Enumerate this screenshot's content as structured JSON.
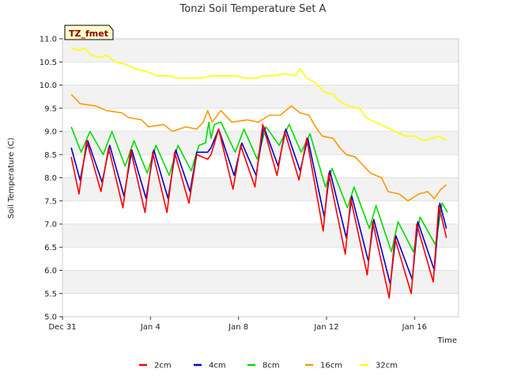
{
  "chart_data": {
    "type": "line",
    "title": "Tonzi Soil Temperature Set A",
    "xlabel": "Time",
    "ylabel": "Soil Temperature (C)",
    "badge": "TZ_fmet",
    "grid": true,
    "legend_position": "bottom",
    "xlim": [
      0,
      18
    ],
    "ylim": [
      5.0,
      11.0
    ],
    "x_ticks": [
      {
        "value": 0,
        "label": "Dec 31"
      },
      {
        "value": 4,
        "label": "Jan 4"
      },
      {
        "value": 8,
        "label": "Jan 8"
      },
      {
        "value": 12,
        "label": "Jan 12"
      },
      {
        "value": 16,
        "label": "Jan 16"
      }
    ],
    "y_ticks": [
      "5.0",
      "5.5",
      "6.0",
      "6.5",
      "7.0",
      "7.5",
      "8.0",
      "8.5",
      "9.0",
      "9.5",
      "10.0",
      "10.5",
      "11.0"
    ],
    "series": [
      {
        "name": "2cm",
        "color": "#ff0000",
        "points": [
          [
            0.4,
            8.45
          ],
          [
            0.75,
            7.65
          ],
          [
            1.1,
            8.8
          ],
          [
            1.75,
            7.7
          ],
          [
            2.1,
            8.65
          ],
          [
            2.75,
            7.35
          ],
          [
            3.1,
            8.6
          ],
          [
            3.75,
            7.25
          ],
          [
            4.1,
            8.55
          ],
          [
            4.75,
            7.25
          ],
          [
            5.1,
            8.55
          ],
          [
            5.75,
            7.45
          ],
          [
            6.1,
            8.5
          ],
          [
            6.6,
            8.4
          ],
          [
            6.75,
            8.5
          ],
          [
            7.1,
            9.05
          ],
          [
            7.75,
            7.75
          ],
          [
            8.1,
            8.7
          ],
          [
            8.75,
            7.8
          ],
          [
            9.1,
            9.15
          ],
          [
            9.75,
            8.05
          ],
          [
            10.1,
            9.0
          ],
          [
            10.75,
            7.95
          ],
          [
            11.1,
            8.85
          ],
          [
            11.85,
            6.85
          ],
          [
            12.1,
            8.1
          ],
          [
            12.85,
            6.35
          ],
          [
            13.1,
            7.55
          ],
          [
            13.85,
            5.9
          ],
          [
            14.1,
            7.05
          ],
          [
            14.85,
            5.4
          ],
          [
            15.1,
            6.7
          ],
          [
            15.85,
            5.5
          ],
          [
            16.1,
            7.0
          ],
          [
            16.85,
            5.75
          ],
          [
            17.1,
            7.4
          ],
          [
            17.45,
            6.7
          ]
        ]
      },
      {
        "name": "4cm",
        "color": "#0000cc",
        "points": [
          [
            0.4,
            8.65
          ],
          [
            0.8,
            7.95
          ],
          [
            1.15,
            8.8
          ],
          [
            1.8,
            7.9
          ],
          [
            2.15,
            8.7
          ],
          [
            2.8,
            7.6
          ],
          [
            3.15,
            8.6
          ],
          [
            3.8,
            7.55
          ],
          [
            4.15,
            8.6
          ],
          [
            4.8,
            7.55
          ],
          [
            5.15,
            8.6
          ],
          [
            5.8,
            7.7
          ],
          [
            6.1,
            8.55
          ],
          [
            6.6,
            8.55
          ],
          [
            6.75,
            8.65
          ],
          [
            7.1,
            9.05
          ],
          [
            7.8,
            8.05
          ],
          [
            8.15,
            8.75
          ],
          [
            8.8,
            8.05
          ],
          [
            9.15,
            9.1
          ],
          [
            9.8,
            8.25
          ],
          [
            10.15,
            9.05
          ],
          [
            10.8,
            8.15
          ],
          [
            11.15,
            8.85
          ],
          [
            11.9,
            7.15
          ],
          [
            12.15,
            8.15
          ],
          [
            12.9,
            6.7
          ],
          [
            13.15,
            7.6
          ],
          [
            13.9,
            6.2
          ],
          [
            14.15,
            7.1
          ],
          [
            14.9,
            5.7
          ],
          [
            15.15,
            6.75
          ],
          [
            15.9,
            5.8
          ],
          [
            16.15,
            7.05
          ],
          [
            16.9,
            6.0
          ],
          [
            17.15,
            7.45
          ],
          [
            17.45,
            6.9
          ]
        ]
      },
      {
        "name": "8cm",
        "color": "#00dd00",
        "points": [
          [
            0.4,
            9.1
          ],
          [
            0.85,
            8.55
          ],
          [
            1.25,
            9.0
          ],
          [
            1.85,
            8.5
          ],
          [
            2.25,
            9.0
          ],
          [
            2.85,
            8.25
          ],
          [
            3.25,
            8.8
          ],
          [
            3.85,
            8.1
          ],
          [
            4.25,
            8.7
          ],
          [
            4.85,
            8.05
          ],
          [
            5.25,
            8.7
          ],
          [
            5.85,
            8.15
          ],
          [
            6.2,
            8.7
          ],
          [
            6.5,
            8.75
          ],
          [
            6.65,
            9.2
          ],
          [
            6.75,
            8.85
          ],
          [
            6.9,
            9.15
          ],
          [
            7.2,
            9.2
          ],
          [
            7.85,
            8.55
          ],
          [
            8.25,
            9.05
          ],
          [
            8.85,
            8.4
          ],
          [
            9.25,
            9.1
          ],
          [
            9.85,
            8.7
          ],
          [
            10.3,
            9.15
          ],
          [
            10.85,
            8.55
          ],
          [
            11.25,
            8.95
          ],
          [
            11.95,
            7.8
          ],
          [
            12.25,
            8.2
          ],
          [
            12.95,
            7.35
          ],
          [
            13.25,
            7.8
          ],
          [
            13.95,
            6.9
          ],
          [
            14.25,
            7.4
          ],
          [
            14.95,
            6.4
          ],
          [
            15.25,
            7.05
          ],
          [
            15.95,
            6.4
          ],
          [
            16.25,
            7.15
          ],
          [
            16.95,
            6.55
          ],
          [
            17.25,
            7.45
          ],
          [
            17.5,
            7.25
          ]
        ]
      },
      {
        "name": "16cm",
        "color": "#ff9900",
        "points": [
          [
            0.4,
            9.8
          ],
          [
            0.8,
            9.6
          ],
          [
            1.5,
            9.55
          ],
          [
            2.0,
            9.45
          ],
          [
            2.7,
            9.4
          ],
          [
            3.0,
            9.3
          ],
          [
            3.6,
            9.25
          ],
          [
            3.9,
            9.1
          ],
          [
            4.6,
            9.15
          ],
          [
            5.0,
            9.0
          ],
          [
            5.6,
            9.1
          ],
          [
            6.1,
            9.05
          ],
          [
            6.4,
            9.2
          ],
          [
            6.6,
            9.45
          ],
          [
            6.8,
            9.2
          ],
          [
            7.2,
            9.45
          ],
          [
            7.7,
            9.2
          ],
          [
            8.4,
            9.25
          ],
          [
            8.9,
            9.2
          ],
          [
            9.4,
            9.35
          ],
          [
            9.9,
            9.35
          ],
          [
            10.4,
            9.55
          ],
          [
            10.8,
            9.4
          ],
          [
            11.2,
            9.35
          ],
          [
            11.5,
            9.1
          ],
          [
            11.8,
            8.9
          ],
          [
            12.3,
            8.85
          ],
          [
            12.6,
            8.65
          ],
          [
            12.9,
            8.5
          ],
          [
            13.3,
            8.45
          ],
          [
            13.7,
            8.25
          ],
          [
            14.0,
            8.1
          ],
          [
            14.5,
            8.0
          ],
          [
            14.8,
            7.7
          ],
          [
            15.3,
            7.65
          ],
          [
            15.7,
            7.5
          ],
          [
            16.2,
            7.65
          ],
          [
            16.6,
            7.7
          ],
          [
            16.9,
            7.55
          ],
          [
            17.2,
            7.75
          ],
          [
            17.45,
            7.85
          ]
        ]
      },
      {
        "name": "32cm",
        "color": "#ffff00",
        "points": [
          [
            0.4,
            10.8
          ],
          [
            0.8,
            10.75
          ],
          [
            1.0,
            10.8
          ],
          [
            1.3,
            10.65
          ],
          [
            1.7,
            10.6
          ],
          [
            2.0,
            10.65
          ],
          [
            2.4,
            10.5
          ],
          [
            2.9,
            10.45
          ],
          [
            3.3,
            10.35
          ],
          [
            3.8,
            10.3
          ],
          [
            4.3,
            10.2
          ],
          [
            4.9,
            10.2
          ],
          [
            5.2,
            10.15
          ],
          [
            5.8,
            10.15
          ],
          [
            6.3,
            10.15
          ],
          [
            6.8,
            10.2
          ],
          [
            7.3,
            10.2
          ],
          [
            7.9,
            10.2
          ],
          [
            8.3,
            10.15
          ],
          [
            8.8,
            10.15
          ],
          [
            9.1,
            10.2
          ],
          [
            9.6,
            10.2
          ],
          [
            10.1,
            10.25
          ],
          [
            10.6,
            10.2
          ],
          [
            10.8,
            10.35
          ],
          [
            11.1,
            10.15
          ],
          [
            11.5,
            10.05
          ],
          [
            11.9,
            9.85
          ],
          [
            12.3,
            9.8
          ],
          [
            12.6,
            9.65
          ],
          [
            13.0,
            9.55
          ],
          [
            13.5,
            9.5
          ],
          [
            13.8,
            9.3
          ],
          [
            14.2,
            9.2
          ],
          [
            14.7,
            9.1
          ],
          [
            15.1,
            9.0
          ],
          [
            15.6,
            8.9
          ],
          [
            16.0,
            8.9
          ],
          [
            16.4,
            8.8
          ],
          [
            16.8,
            8.85
          ],
          [
            17.1,
            8.9
          ],
          [
            17.45,
            8.8
          ]
        ]
      }
    ]
  }
}
